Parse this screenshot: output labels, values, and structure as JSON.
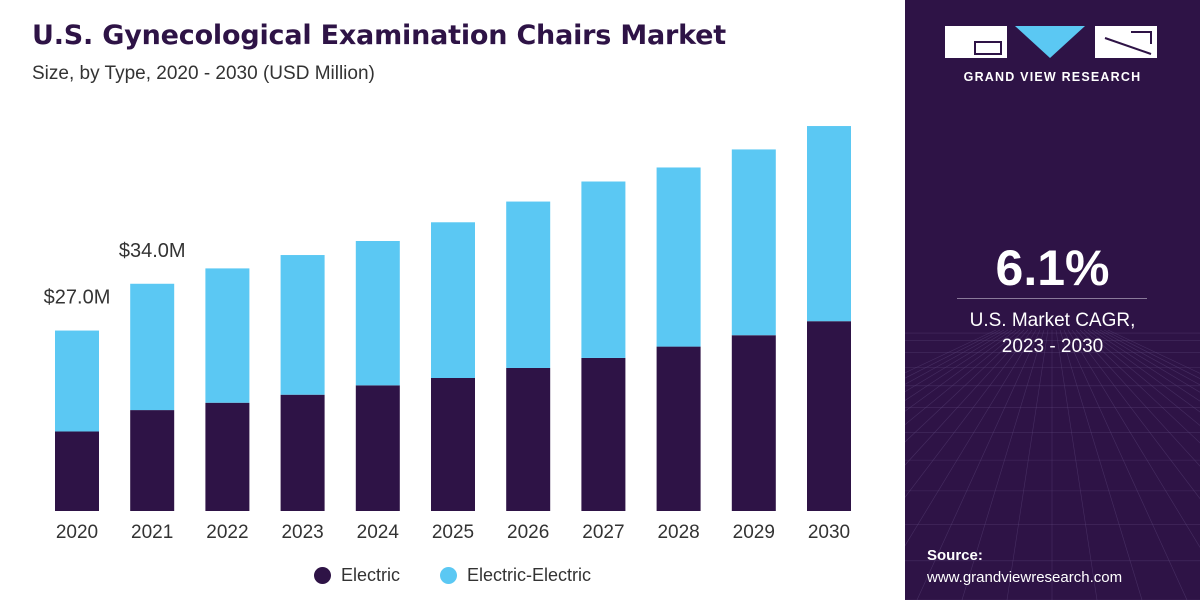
{
  "title": "U.S. Gynecological Examination Chairs Market",
  "subtitle": "Size, by Type, 2020 - 2030 (USD Million)",
  "chart_data": {
    "type": "bar",
    "stacked": true,
    "categories": [
      "2020",
      "2021",
      "2022",
      "2023",
      "2024",
      "2025",
      "2026",
      "2027",
      "2028",
      "2029",
      "2030"
    ],
    "series": [
      {
        "name": "Electric",
        "color": "#2e1346",
        "values": [
          11.9,
          15.1,
          16.2,
          17.4,
          18.8,
          19.9,
          21.4,
          22.9,
          24.6,
          26.3,
          28.4
        ]
      },
      {
        "name": "Electric-Electric",
        "color": "#5bc8f3",
        "values": [
          15.1,
          18.9,
          20.1,
          20.9,
          21.6,
          23.3,
          24.9,
          26.4,
          26.8,
          27.8,
          29.2
        ]
      }
    ],
    "annotations": [
      {
        "category": "2020",
        "text": "$27.0M"
      },
      {
        "category": "2021",
        "text": "$34.0M"
      }
    ],
    "ylim": [
      0,
      60
    ],
    "grid": false,
    "legend": "bottom"
  },
  "brand": {
    "name": "GRAND VIEW RESEARCH"
  },
  "cagr": {
    "value": "6.1%",
    "label_line1": "U.S. Market CAGR,",
    "label_line2": "2023 - 2030"
  },
  "source": {
    "title": "Source:",
    "url": "www.grandviewresearch.com"
  }
}
